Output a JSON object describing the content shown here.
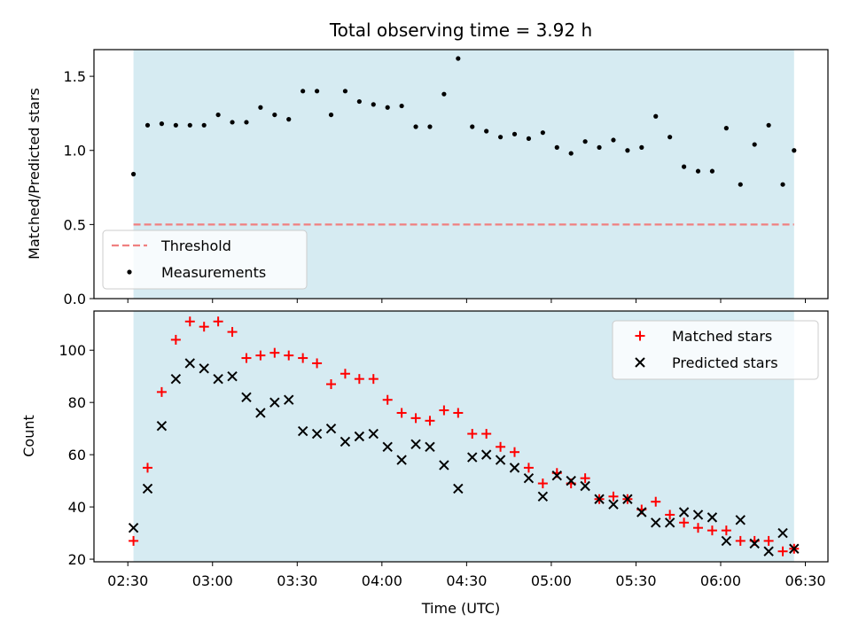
{
  "chart_data": {
    "title": "Total observing time = 3.92 h",
    "xlabel": "Time (UTC)",
    "x_tick_labels": [
      "02:30",
      "03:00",
      "03:30",
      "04:00",
      "04:30",
      "05:00",
      "05:30",
      "06:00",
      "06:30"
    ],
    "shaded_span": [
      "02:32",
      "06:26"
    ],
    "shade_color": "#add8e6",
    "panels": [
      {
        "type": "scatter",
        "ylabel": "Matched/Predicted stars",
        "ylim": [
          0.0,
          1.68
        ],
        "y_ticks": [
          0.0,
          0.5,
          1.0,
          1.5
        ],
        "y_tick_labels": [
          "0.0",
          "0.5",
          "1.0",
          "1.5"
        ],
        "legend": {
          "placement": "lower-left",
          "entries": [
            "Threshold",
            "Measurements"
          ]
        },
        "threshold": {
          "name": "Threshold",
          "value": 0.5,
          "color": "#f08080",
          "style": "dashed"
        },
        "series": [
          {
            "name": "Measurements",
            "color": "#000000",
            "marker": "dot",
            "x": [
              "02:32",
              "02:37",
              "02:42",
              "02:47",
              "02:52",
              "02:57",
              "03:02",
              "03:07",
              "03:12",
              "03:17",
              "03:22",
              "03:27",
              "03:32",
              "03:37",
              "03:42",
              "03:47",
              "03:52",
              "03:57",
              "04:02",
              "04:07",
              "04:12",
              "04:17",
              "04:22",
              "04:27",
              "04:32",
              "04:37",
              "04:42",
              "04:47",
              "04:52",
              "04:57",
              "05:02",
              "05:07",
              "05:12",
              "05:17",
              "05:22",
              "05:27",
              "05:32",
              "05:37",
              "05:42",
              "05:47",
              "05:52",
              "05:57",
              "06:02",
              "06:07",
              "06:12",
              "06:17",
              "06:22",
              "06:26"
            ],
            "y": [
              0.84,
              1.17,
              1.18,
              1.17,
              1.17,
              1.17,
              1.24,
              1.19,
              1.19,
              1.29,
              1.24,
              1.21,
              1.4,
              1.4,
              1.24,
              1.4,
              1.33,
              1.31,
              1.29,
              1.3,
              1.16,
              1.16,
              1.38,
              1.62,
              1.16,
              1.13,
              1.09,
              1.11,
              1.08,
              1.12,
              1.02,
              0.98,
              1.06,
              1.02,
              1.07,
              1.0,
              1.02,
              1.23,
              1.09,
              0.89,
              0.86,
              0.86,
              1.15,
              0.77,
              1.04,
              1.17,
              0.77,
              1.0
            ]
          }
        ]
      },
      {
        "type": "scatter",
        "ylabel": "Count",
        "ylim": [
          19,
          115
        ],
        "y_ticks": [
          20,
          40,
          60,
          80,
          100
        ],
        "y_tick_labels": [
          "20",
          "40",
          "60",
          "80",
          "100"
        ],
        "legend": {
          "placement": "upper-right",
          "entries": [
            "Matched stars",
            "Predicted stars"
          ]
        },
        "series": [
          {
            "name": "Matched stars",
            "color": "#ff0000",
            "marker": "plus",
            "x": [
              "02:32",
              "02:37",
              "02:42",
              "02:47",
              "02:52",
              "02:57",
              "03:02",
              "03:07",
              "03:12",
              "03:17",
              "03:22",
              "03:27",
              "03:32",
              "03:37",
              "03:42",
              "03:47",
              "03:52",
              "03:57",
              "04:02",
              "04:07",
              "04:12",
              "04:17",
              "04:22",
              "04:27",
              "04:32",
              "04:37",
              "04:42",
              "04:47",
              "04:52",
              "04:57",
              "05:02",
              "05:07",
              "05:12",
              "05:17",
              "05:22",
              "05:27",
              "05:32",
              "05:37",
              "05:42",
              "05:47",
              "05:52",
              "05:57",
              "06:02",
              "06:07",
              "06:12",
              "06:17",
              "06:22",
              "06:26"
            ],
            "y": [
              27,
              55,
              84,
              104,
              111,
              109,
              111,
              107,
              97,
              98,
              99,
              98,
              97,
              95,
              87,
              91,
              89,
              89,
              81,
              76,
              74,
              73,
              77,
              76,
              68,
              68,
              63,
              61,
              55,
              49,
              53,
              49,
              51,
              43,
              44,
              43,
              39,
              42,
              37,
              34,
              32,
              31,
              31,
              27,
              27,
              27,
              23,
              24
            ]
          },
          {
            "name": "Predicted stars",
            "color": "#000000",
            "marker": "cross",
            "x": [
              "02:32",
              "02:37",
              "02:42",
              "02:47",
              "02:52",
              "02:57",
              "03:02",
              "03:07",
              "03:12",
              "03:17",
              "03:22",
              "03:27",
              "03:32",
              "03:37",
              "03:42",
              "03:47",
              "03:52",
              "03:57",
              "04:02",
              "04:07",
              "04:12",
              "04:17",
              "04:22",
              "04:27",
              "04:32",
              "04:37",
              "04:42",
              "04:47",
              "04:52",
              "04:57",
              "05:02",
              "05:07",
              "05:12",
              "05:17",
              "05:22",
              "05:27",
              "05:32",
              "05:37",
              "05:42",
              "05:47",
              "05:52",
              "05:57",
              "06:02",
              "06:07",
              "06:12",
              "06:17",
              "06:22",
              "06:26"
            ],
            "y": [
              32,
              47,
              71,
              89,
              95,
              93,
              89,
              90,
              82,
              76,
              80,
              81,
              69,
              68,
              70,
              65,
              67,
              68,
              63,
              58,
              64,
              63,
              56,
              47,
              59,
              60,
              58,
              55,
              51,
              44,
              52,
              50,
              48,
              43,
              41,
              43,
              38,
              34,
              34,
              38,
              37,
              36,
              27,
              35,
              26,
              23,
              30,
              24
            ]
          }
        ]
      }
    ]
  }
}
